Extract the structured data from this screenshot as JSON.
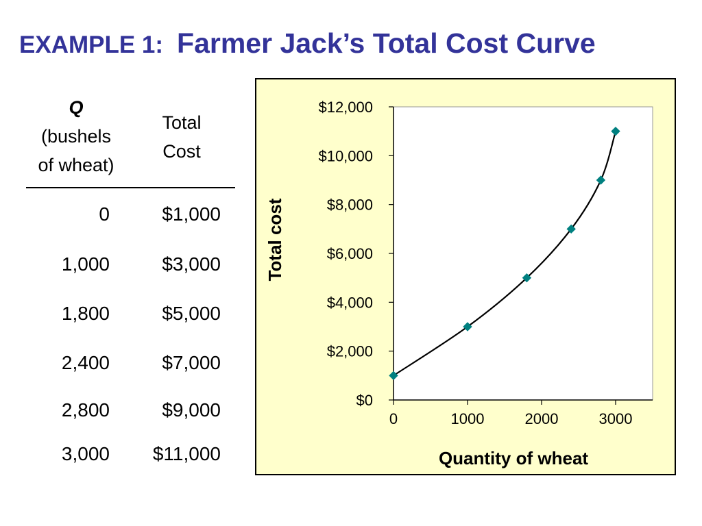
{
  "slide": {
    "title_prefix": "EXAMPLE 1:",
    "title_main": "Farmer Jack’s Total Cost Curve",
    "title_color": "#333399"
  },
  "table": {
    "header_q_symbol": "Q",
    "header_q_line2": "(bushels",
    "header_q_line3": "of wheat)",
    "header_cost_line1": "Total",
    "header_cost_line2": "Cost",
    "rows": [
      {
        "q": "0",
        "cost": "$1,000"
      },
      {
        "q": "1,000",
        "cost": "$3,000"
      },
      {
        "q": "1,800",
        "cost": "$5,000"
      },
      {
        "q": "2,400",
        "cost": "$7,000"
      },
      {
        "q": "2,800",
        "cost": "$9,000"
      },
      {
        "q": "3,000",
        "cost": "$11,000"
      }
    ]
  },
  "chart_data": {
    "type": "line",
    "title": "",
    "xlabel": "Quantity of wheat",
    "ylabel": "Total cost",
    "x": [
      0,
      1000,
      1800,
      2400,
      2800,
      3000
    ],
    "y": [
      1000,
      3000,
      5000,
      7000,
      9000,
      11000
    ],
    "xlim": [
      0,
      3500
    ],
    "ylim": [
      0,
      12000
    ],
    "x_ticks": [
      0,
      1000,
      2000,
      3000
    ],
    "x_tick_labels": [
      "0",
      "1000",
      "2000",
      "3000"
    ],
    "y_ticks": [
      0,
      2000,
      4000,
      6000,
      8000,
      10000,
      12000
    ],
    "y_tick_labels": [
      "$0",
      "$2,000",
      "$4,000",
      "$6,000",
      "$8,000",
      "$10,000",
      "$12,000"
    ],
    "grid": false,
    "legend": "none",
    "marker": "diamond",
    "marker_color": "#008080",
    "line_color": "#000000",
    "panel_background": "#ffffcc",
    "plot_background": "#ffffff"
  }
}
